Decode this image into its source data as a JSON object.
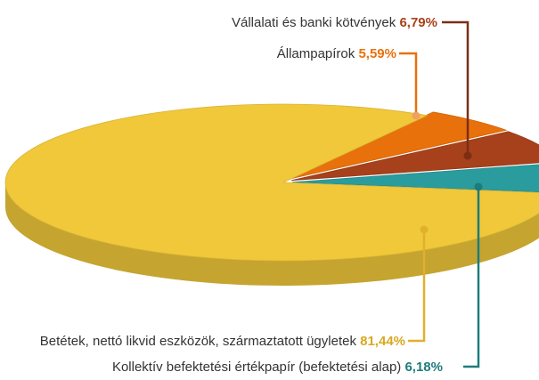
{
  "chart_data": {
    "type": "pie",
    "categories": [
      "Kollektív befektetési értékpapír (befektetési alap)",
      "Vállalati és banki kötvények",
      "Állampapírok",
      "Betétek, nettó likvid eszközök, származtatott ügyletek"
    ],
    "values": [
      6.18,
      6.79,
      5.59,
      81.44
    ],
    "value_labels": [
      "6,18%",
      "6,79%",
      "5,59%",
      "81,44%"
    ],
    "colors": [
      "#2a9c9e",
      "#a7411b",
      "#e8710c",
      "#f0c83a"
    ]
  }
}
